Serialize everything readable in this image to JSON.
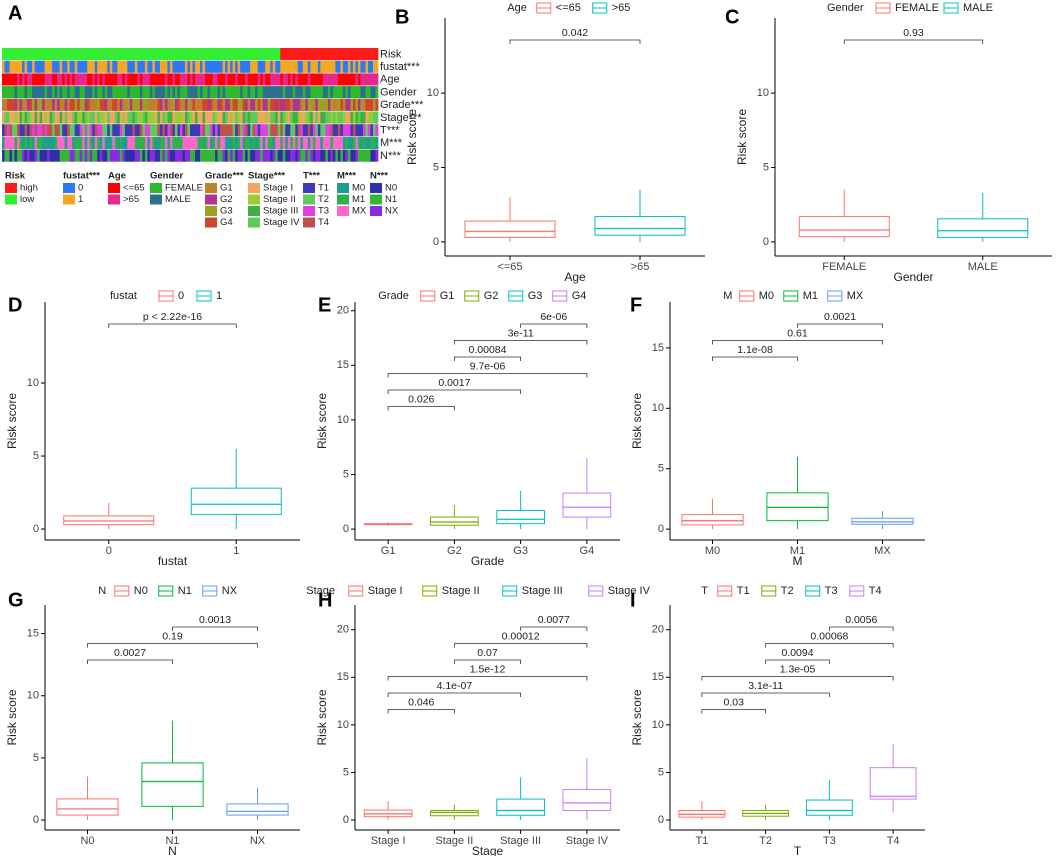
{
  "chart_data": [
    {
      "type": "heatmap",
      "label": "A",
      "rows": [
        {
          "name": "Risk",
          "items": [
            {
              "name": "high",
              "color": "#FF1A1A"
            },
            {
              "name": "low",
              "color": "#33EE33"
            }
          ]
        },
        {
          "name": "fustat***",
          "items": [
            {
              "name": "0",
              "color": "#2B7BF0"
            },
            {
              "name": "1",
              "color": "#F5A623"
            }
          ]
        },
        {
          "name": "Age",
          "items": [
            {
              "name": "<=65",
              "color": "#FF0000"
            },
            {
              "name": ">65",
              "color": "#E5298C"
            }
          ]
        },
        {
          "name": "Gender",
          "items": [
            {
              "name": "FEMALE",
              "color": "#2EB82E"
            },
            {
              "name": "MALE",
              "color": "#2E6E8E"
            }
          ]
        },
        {
          "name": "Grade***",
          "items": [
            {
              "name": "G1",
              "color": "#BF812D"
            },
            {
              "name": "G2",
              "color": "#B0358C"
            },
            {
              "name": "G3",
              "color": "#A0A020"
            },
            {
              "name": "G4",
              "color": "#D2452C"
            }
          ]
        },
        {
          "name": "Stage***",
          "items": [
            {
              "name": "Stage I",
              "color": "#F4A460"
            },
            {
              "name": "Stage II",
              "color": "#9ACD32"
            },
            {
              "name": "Stage III",
              "color": "#3CB043"
            },
            {
              "name": "Stage IV",
              "color": "#5CCB5C"
            }
          ]
        },
        {
          "name": "T***",
          "items": [
            {
              "name": "T1",
              "color": "#3B3BB3"
            },
            {
              "name": "T2",
              "color": "#5FC95F"
            },
            {
              "name": "T3",
              "color": "#E040E0"
            },
            {
              "name": "T4",
              "color": "#C0504D"
            }
          ]
        },
        {
          "name": "M***",
          "items": [
            {
              "name": "M0",
              "color": "#1E9E8E"
            },
            {
              "name": "M1",
              "color": "#2BB24C"
            },
            {
              "name": "MX",
              "color": "#FF66CC"
            }
          ]
        },
        {
          "name": "N***",
          "items": [
            {
              "name": "N0",
              "color": "#2F2FA8"
            },
            {
              "name": "N1",
              "color": "#35B535"
            },
            {
              "name": "NX",
              "color": "#8A2BE2"
            }
          ]
        }
      ]
    },
    {
      "type": "box",
      "label": "B",
      "legend_title": "Age",
      "categories": [
        "<=65",
        ">65"
      ],
      "colors": [
        "#F8766D",
        "#00BFC4"
      ],
      "boxes": [
        {
          "whisker_low": 0,
          "q1": 0.3,
          "median": 0.7,
          "q3": 1.4,
          "whisker_high": 3.0
        },
        {
          "whisker_low": 0,
          "q1": 0.45,
          "median": 0.9,
          "q3": 1.7,
          "whisker_high": 3.5
        }
      ],
      "xlabel": "Age",
      "ylabel": "Risk score",
      "ylim": [
        -0.95,
        15.05
      ],
      "yticks": [
        0,
        5,
        10
      ],
      "comparisons": [
        {
          "groups": [
            "<=65",
            ">65"
          ],
          "label": "0.042"
        }
      ]
    },
    {
      "type": "box",
      "label": "C",
      "legend_title": "Gender",
      "categories": [
        "FEMALE",
        "MALE"
      ],
      "colors": [
        "#F8766D",
        "#00BFC4"
      ],
      "boxes": [
        {
          "whisker_low": 0,
          "q1": 0.35,
          "median": 0.8,
          "q3": 1.7,
          "whisker_high": 3.5
        },
        {
          "whisker_low": 0,
          "q1": 0.3,
          "median": 0.75,
          "q3": 1.55,
          "whisker_high": 3.3
        }
      ],
      "xlabel": "Gender",
      "ylabel": "Risk score",
      "ylim": [
        -0.95,
        15.05
      ],
      "yticks": [
        0,
        5,
        10
      ],
      "comparisons": [
        {
          "groups": [
            "FEMALE",
            "MALE"
          ],
          "label": "0.93"
        }
      ]
    },
    {
      "type": "box",
      "label": "D",
      "legend_title": "fustat",
      "categories": [
        "0",
        "1"
      ],
      "colors": [
        "#F8766D",
        "#00BFC4"
      ],
      "boxes": [
        {
          "whisker_low": 0,
          "q1": 0.3,
          "median": 0.55,
          "q3": 0.9,
          "whisker_high": 1.8
        },
        {
          "whisker_low": 0,
          "q1": 1.0,
          "median": 1.7,
          "q3": 2.8,
          "whisker_high": 5.5
        }
      ],
      "xlabel": "fustat",
      "ylabel": "Risk score",
      "ylim": [
        -0.75,
        15.55
      ],
      "yticks": [
        0,
        5,
        10
      ],
      "comparisons": [
        {
          "groups": [
            "0",
            "1"
          ],
          "label": "p < 2.22e-16"
        }
      ]
    },
    {
      "type": "box",
      "label": "E",
      "legend_title": "Grade",
      "categories": [
        "G1",
        "G2",
        "G3",
        "G4"
      ],
      "colors": [
        "#F8766D",
        "#7CAE00",
        "#00BFC4",
        "#C77CFF"
      ],
      "boxes": [
        {
          "whisker_low": 0.3,
          "q1": 0.4,
          "median": 0.45,
          "q3": 0.5,
          "whisker_high": 0.6
        },
        {
          "whisker_low": 0,
          "q1": 0.35,
          "median": 0.65,
          "q3": 1.1,
          "whisker_high": 2.2
        },
        {
          "whisker_low": 0,
          "q1": 0.5,
          "median": 0.9,
          "q3": 1.7,
          "whisker_high": 3.5
        },
        {
          "whisker_low": 0,
          "q1": 1.1,
          "median": 2.0,
          "q3": 3.3,
          "whisker_high": 6.5
        }
      ],
      "xlabel": "Grade",
      "ylabel": "Risk score",
      "ylim": [
        -1,
        20.8
      ],
      "yticks": [
        0,
        5,
        10,
        15,
        20
      ],
      "comparisons": [
        {
          "groups": [
            "G3",
            "G4"
          ],
          "label": "6e-06"
        },
        {
          "groups": [
            "G2",
            "G4"
          ],
          "label": "3e-11"
        },
        {
          "groups": [
            "G2",
            "G3"
          ],
          "label": "0.00084"
        },
        {
          "groups": [
            "G1",
            "G4"
          ],
          "label": "9.7e-06"
        },
        {
          "groups": [
            "G1",
            "G3"
          ],
          "label": "0.0017"
        },
        {
          "groups": [
            "G1",
            "G2"
          ],
          "label": "0.026"
        }
      ]
    },
    {
      "type": "box",
      "label": "F",
      "legend_title": "M",
      "categories": [
        "M0",
        "M1",
        "MX"
      ],
      "colors": [
        "#F8766D",
        "#00BA38",
        "#619CFF"
      ],
      "boxes": [
        {
          "whisker_low": 0,
          "q1": 0.35,
          "median": 0.7,
          "q3": 1.2,
          "whisker_high": 2.5
        },
        {
          "whisker_low": 0,
          "q1": 0.7,
          "median": 1.8,
          "q3": 3.0,
          "whisker_high": 6.0
        },
        {
          "whisker_low": 0,
          "q1": 0.4,
          "median": 0.6,
          "q3": 0.9,
          "whisker_high": 1.5
        }
      ],
      "xlabel": "M",
      "ylabel": "Risk score",
      "ylim": [
        -0.9,
        18.8
      ],
      "yticks": [
        0,
        5,
        10,
        15
      ],
      "comparisons": [
        {
          "groups": [
            "M1",
            "MX"
          ],
          "label": "0.0021"
        },
        {
          "groups": [
            "M0",
            "MX"
          ],
          "label": "0.61"
        },
        {
          "groups": [
            "M0",
            "M1"
          ],
          "label": "1.1e-08"
        }
      ]
    },
    {
      "type": "box",
      "label": "G",
      "legend_title": "N",
      "categories": [
        "N0",
        "N1",
        "NX"
      ],
      "colors": [
        "#F8766D",
        "#00BA38",
        "#619CFF"
      ],
      "boxes": [
        {
          "whisker_low": 0,
          "q1": 0.4,
          "median": 0.9,
          "q3": 1.7,
          "whisker_high": 3.5
        },
        {
          "whisker_low": 0,
          "q1": 1.1,
          "median": 3.1,
          "q3": 4.6,
          "whisker_high": 8
        },
        {
          "whisker_low": 0,
          "q1": 0.4,
          "median": 0.7,
          "q3": 1.3,
          "whisker_high": 2.6
        }
      ],
      "xlabel": "N",
      "ylabel": "Risk score",
      "ylim": [
        -0.8,
        17.3
      ],
      "yticks": [
        0,
        5,
        10,
        15
      ],
      "comparisons": [
        {
          "groups": [
            "N1",
            "NX"
          ],
          "label": "0.0013"
        },
        {
          "groups": [
            "N0",
            "NX"
          ],
          "label": "0.19"
        },
        {
          "groups": [
            "N0",
            "N1"
          ],
          "label": "0.0027"
        }
      ]
    },
    {
      "type": "box",
      "label": "H",
      "legend_title": "Stage",
      "categories": [
        "Stage I",
        "Stage II",
        "Stage III",
        "Stage IV"
      ],
      "colors": [
        "#F8766D",
        "#7CAE00",
        "#00BFC4",
        "#C77CFF"
      ],
      "boxes": [
        {
          "whisker_low": 0,
          "q1": 0.35,
          "median": 0.65,
          "q3": 1.05,
          "whisker_high": 2.0
        },
        {
          "whisker_low": 0,
          "q1": 0.45,
          "median": 0.8,
          "q3": 1.0,
          "whisker_high": 1.6
        },
        {
          "whisker_low": 0,
          "q1": 0.5,
          "median": 1.0,
          "q3": 2.2,
          "whisker_high": 4.5
        },
        {
          "whisker_low": 0,
          "q1": 1.0,
          "median": 1.8,
          "q3": 3.2,
          "whisker_high": 6.5
        }
      ],
      "xlabel": "Stage",
      "ylabel": "Risk score",
      "ylim": [
        -1.05,
        22.6
      ],
      "yticks": [
        0,
        5,
        10,
        15,
        20
      ],
      "comparisons": [
        {
          "groups": [
            "Stage III",
            "Stage IV"
          ],
          "label": "0.0077"
        },
        {
          "groups": [
            "Stage II",
            "Stage IV"
          ],
          "label": "0.00012"
        },
        {
          "groups": [
            "Stage II",
            "Stage III"
          ],
          "label": "0.07"
        },
        {
          "groups": [
            "Stage I",
            "Stage IV"
          ],
          "label": "1.5e-12"
        },
        {
          "groups": [
            "Stage I",
            "Stage III"
          ],
          "label": "4.1e-07"
        },
        {
          "groups": [
            "Stage I",
            "Stage II"
          ],
          "label": "0.046"
        }
      ]
    },
    {
      "type": "box",
      "label": "I",
      "legend_title": "T",
      "categories": [
        "T1",
        "T2",
        "T3",
        "T4"
      ],
      "colors": [
        "#F8766D",
        "#7CAE00",
        "#00BFC4",
        "#C77CFF"
      ],
      "boxes": [
        {
          "whisker_low": 0,
          "q1": 0.3,
          "median": 0.6,
          "q3": 1.0,
          "whisker_high": 2.0
        },
        {
          "whisker_low": 0,
          "q1": 0.4,
          "median": 0.7,
          "q3": 1.0,
          "whisker_high": 1.6
        },
        {
          "whisker_low": 0,
          "q1": 0.5,
          "median": 1.0,
          "q3": 2.1,
          "whisker_high": 4.2
        },
        {
          "whisker_low": 0.8,
          "q1": 2.2,
          "median": 2.5,
          "q3": 5.5,
          "whisker_high": 8
        }
      ],
      "xlabel": "T",
      "ylabel": "Risk score",
      "ylim": [
        -1.05,
        22.6
      ],
      "yticks": [
        0,
        5,
        10,
        15,
        20
      ],
      "comparisons": [
        {
          "groups": [
            "T3",
            "T4"
          ],
          "label": "0.0056"
        },
        {
          "groups": [
            "T2",
            "T4"
          ],
          "label": "0.00068"
        },
        {
          "groups": [
            "T2",
            "T3"
          ],
          "label": "0.0094"
        },
        {
          "groups": [
            "T1",
            "T4"
          ],
          "label": "1.3e-05"
        },
        {
          "groups": [
            "T1",
            "T3"
          ],
          "label": "3.1e-11"
        },
        {
          "groups": [
            "T1",
            "T2"
          ],
          "label": "0.03"
        }
      ]
    }
  ]
}
